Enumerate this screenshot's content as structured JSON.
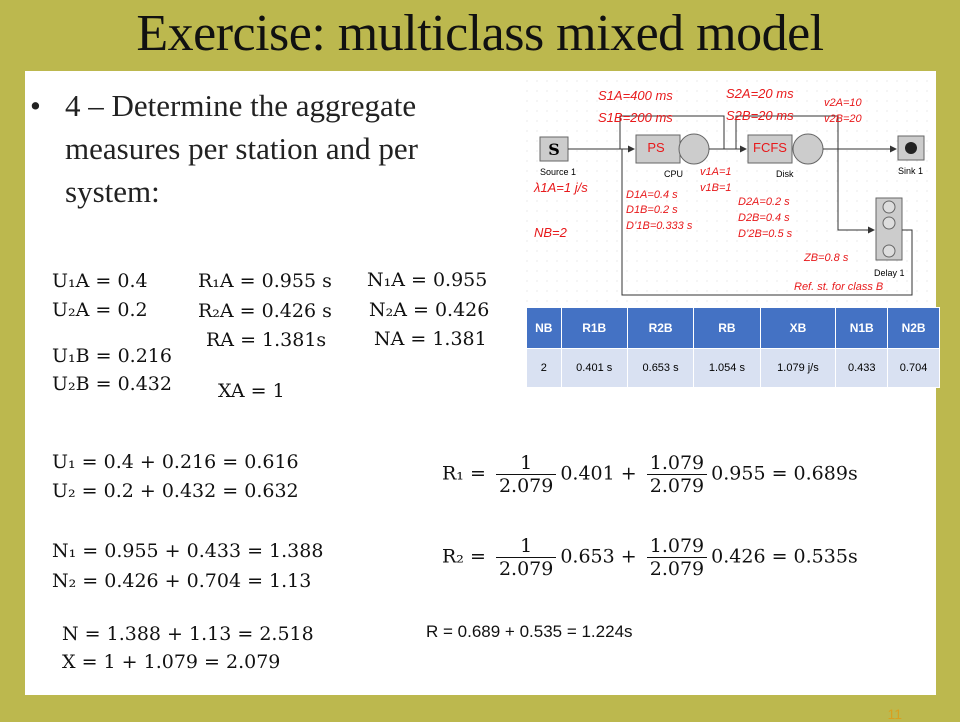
{
  "title": "Exercise: multiclass mixed model",
  "bullet": {
    "marker": "•",
    "text": "4 – Determine the aggregate measures per station and per system:"
  },
  "eqs": {
    "u1a": "U₁A = 0.4",
    "u2a": "U₂A = 0.2",
    "u1b": "U₁B = 0.216",
    "u2b": "U₂B = 0.432",
    "r1a": "R₁A = 0.955 s",
    "r2a": "R₂A = 0.426 s",
    "ra": "RA = 1.381s",
    "xa": "XA = 1",
    "n1a": "N₁A = 0.955",
    "n2a": "N₂A = 0.426",
    "na": "NA = 1.381",
    "u1": "U₁ = 0.4 + 0.216 = 0.616",
    "u2": "U₂ = 0.2 + 0.432 = 0.632",
    "n1": "N₁ = 0.955 + 0.433 = 1.388",
    "n2": "N₂ = 0.426 + 0.704 = 1.13",
    "n": "N = 1.388 + 1.13 = 2.518",
    "x": "X = 1 + 1.079 = 2.079"
  },
  "r1": {
    "lhs": "R₁ =",
    "f1num": "1",
    "f1den": "2.079",
    "v1": "0.401 +",
    "f2num": "1.079",
    "f2den": "2.079",
    "v2": "0.955 = 0.689s"
  },
  "r2": {
    "lhs": "R₂ =",
    "f1num": "1",
    "f1den": "2.079",
    "v1": "0.653 +",
    "f2num": "1.079",
    "f2den": "2.079",
    "v2": "0.426 = 0.535s"
  },
  "r_total": "R = 0.689 + 0.535 =  1.224s",
  "diagram": {
    "s1a": "S1A=400 ms",
    "s1b": "S1B=200 ms",
    "s2a": "S2A=20 ms",
    "s2b": "S2B=20 ms",
    "v2a": "v2A=10",
    "v2b": "v2B=20",
    "source_letter": "S",
    "ps": "PS",
    "fcfs": "FCFS",
    "source": "Source 1",
    "cpu": "CPU",
    "disk": "Disk",
    "sink": "Sink 1",
    "delay": "Delay 1",
    "lambda": "λ1A=1 j/s",
    "d1a": "D1A=0.4 s",
    "d1b": "D1B=0.2  s",
    "dp1b": "D’1B=0.333  s",
    "v1a": "v1A=1",
    "v1b": "v1B=1",
    "d2a": "D2A=0.2  s",
    "d2b": "D2B=0.4  s",
    "dp2b": "D’2B=0.5 s",
    "nb": "NB=2",
    "zb": "ZB=0.8 s",
    "ref": "Ref. st. for class B"
  },
  "table": {
    "headers": [
      "NB",
      "R1B",
      "R2B",
      "RB",
      "XB",
      "N1B",
      "N2B"
    ],
    "row": [
      "2",
      "0.401  s",
      "0.653  s",
      "1.054  s",
      "1.079 j/s",
      "0.433",
      "0.704"
    ]
  },
  "page_number": "11",
  "colors": {
    "background": "#bcb84e",
    "annotation": "#e8191b",
    "table_header": "#4472c4",
    "table_cell": "#d9e1f2"
  }
}
